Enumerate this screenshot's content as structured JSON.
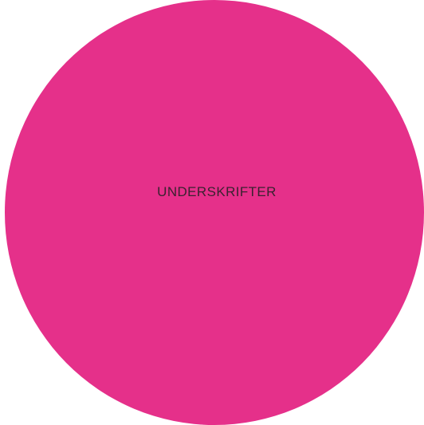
{
  "circle": {
    "label": "UNDERSKRIFTER",
    "fill_color": "#e5308a",
    "text_color": "#3a2230"
  }
}
